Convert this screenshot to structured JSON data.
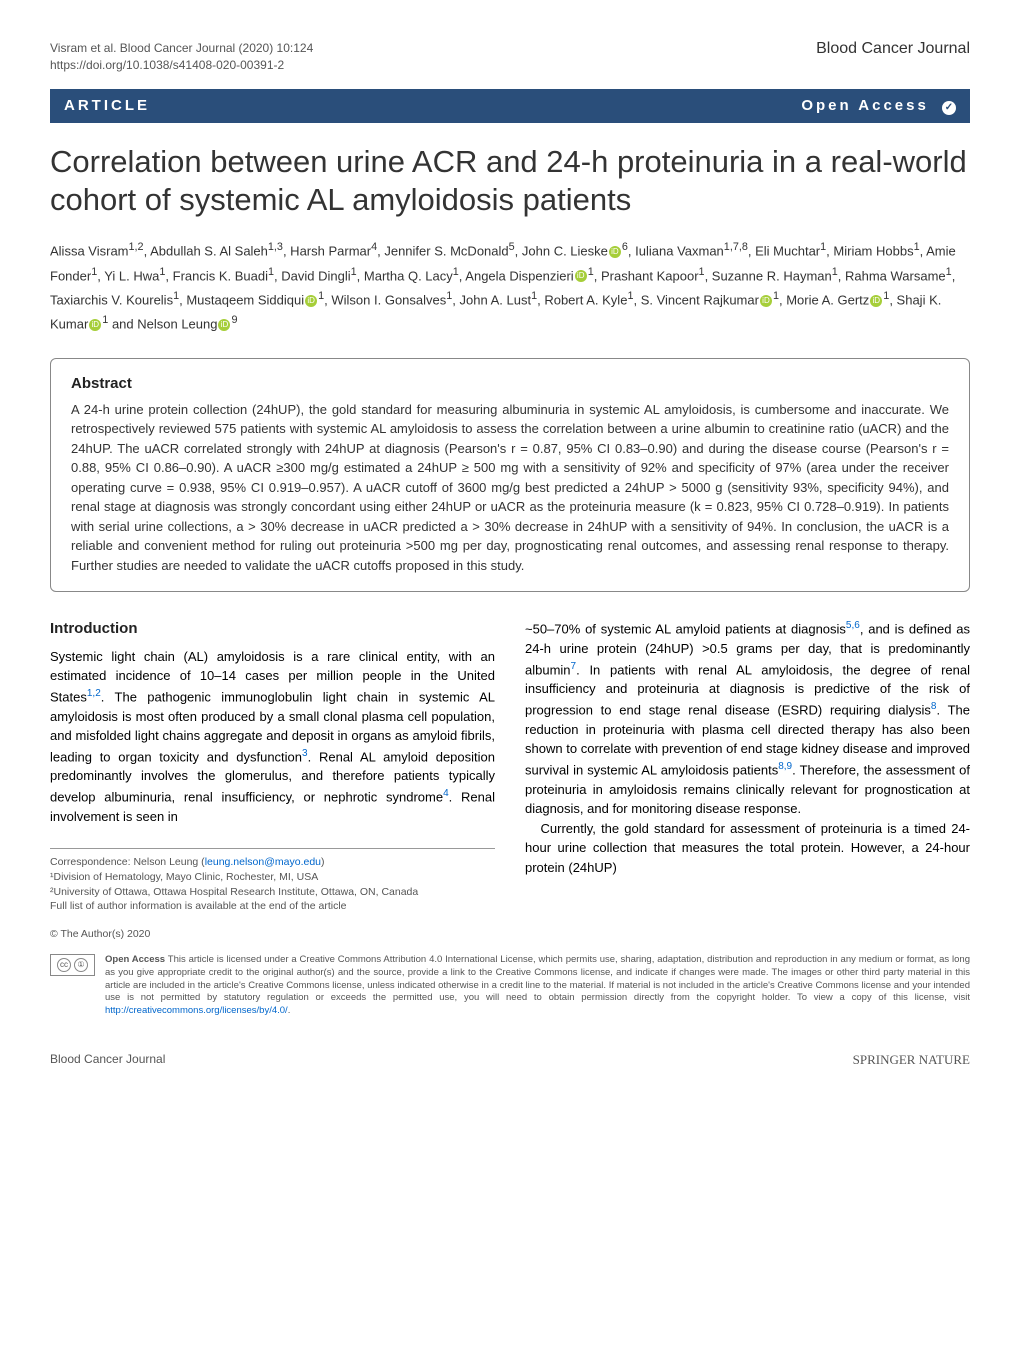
{
  "header": {
    "citation_line1": "Visram et al. Blood Cancer Journal         (2020) 10:124",
    "citation_line2": "https://doi.org/10.1038/s41408-020-00391-2",
    "journal": "Blood Cancer Journal"
  },
  "bar": {
    "left": "ARTICLE",
    "right": "Open Access"
  },
  "title": "Correlation between urine ACR and 24-h proteinuria in a real-world cohort of systemic AL amyloidosis patients",
  "authors_html": "Alissa Visram<sup>1,2</sup>, Abdullah S. Al Saleh<sup>1,3</sup>, Harsh Parmar<sup>4</sup>, Jennifer S. McDonald<sup>5</sup>, John C. Lieske<span class='orcid'>iD</span><sup>6</sup>, Iuliana Vaxman<sup>1,7,8</sup>, Eli Muchtar<sup>1</sup>, Miriam Hobbs<sup>1</sup>, Amie Fonder<sup>1</sup>, Yi L. Hwa<sup>1</sup>, Francis K. Buadi<sup>1</sup>, David Dingli<sup>1</sup>, Martha Q. Lacy<sup>1</sup>, Angela Dispenzieri<span class='orcid'>iD</span><sup>1</sup>, Prashant Kapoor<sup>1</sup>, Suzanne R. Hayman<sup>1</sup>, Rahma Warsame<sup>1</sup>, Taxiarchis V. Kourelis<sup>1</sup>, Mustaqeem Siddiqui<span class='orcid'>iD</span><sup>1</sup>, Wilson I. Gonsalves<sup>1</sup>, John A. Lust<sup>1</sup>, Robert A. Kyle<sup>1</sup>, S. Vincent Rajkumar<span class='orcid'>iD</span><sup>1</sup>, Morie A. Gertz<span class='orcid'>iD</span><sup>1</sup>, Shaji K. Kumar<span class='orcid'>iD</span><sup>1</sup> and Nelson Leung<span class='orcid'>iD</span><sup>9</sup>",
  "abstract": {
    "heading": "Abstract",
    "text": "A 24-h urine protein collection (24hUP), the gold standard for measuring albuminuria in systemic AL amyloidosis, is cumbersome and inaccurate. We retrospectively reviewed 575 patients with systemic AL amyloidosis to assess the correlation between a urine albumin to creatinine ratio (uACR) and the 24hUP. The uACR correlated strongly with 24hUP at diagnosis (Pearson's r = 0.87, 95% CI 0.83–0.90) and during the disease course (Pearson's r = 0.88, 95% CI 0.86–0.90). A uACR ≥300 mg/g estimated a 24hUP ≥ 500 mg with a sensitivity of 92% and specificity of 97% (area under the receiver operating curve = 0.938, 95% CI 0.919–0.957). A uACR cutoff of 3600 mg/g best predicted a 24hUP > 5000 g (sensitivity 93%, specificity 94%), and renal stage at diagnosis was strongly concordant using either 24hUP or uACR as the proteinuria measure (k = 0.823, 95% CI 0.728–0.919). In patients with serial urine collections, a > 30% decrease in uACR predicted a > 30% decrease in 24hUP with a sensitivity of 94%. In conclusion, the uACR is a reliable and convenient method for ruling out proteinuria >500 mg per day, prognosticating renal outcomes, and assessing renal response to therapy. Further studies are needed to validate the uACR cutoffs proposed in this study."
  },
  "intro": {
    "heading": "Introduction",
    "col1_html": "Systemic light chain (AL) amyloidosis is a rare clinical entity, with an estimated incidence of 10–14 cases per million people in the United States<span class='ref-sup'>1,2</span>. The pathogenic immunoglobulin light chain in systemic AL amyloidosis is most often produced by a small clonal plasma cell population, and misfolded light chains aggregate and deposit in organs as amyloid fibrils, leading to organ toxicity and dysfunction<span class='ref-sup'>3</span>. Renal AL amyloid deposition predominantly involves the glomerulus, and therefore patients typically develop albuminuria, renal insufficiency, or nephrotic syndrome<span class='ref-sup'>4</span>. Renal involvement is seen in",
    "col2_html": "~50–70% of systemic AL amyloid patients at diagnosis<span class='ref-sup'>5,6</span>, and is defined as 24-h urine protein (24hUP) >0.5 grams per day, that is predominantly albumin<span class='ref-sup'>7</span>. In patients with renal AL amyloidosis, the degree of renal insufficiency and proteinuria at diagnosis is predictive of the risk of progression to end stage renal disease (ESRD) requiring dialysis<span class='ref-sup'>8</span>. The reduction in proteinuria with plasma cell directed therapy has also been shown to correlate with prevention of end stage kidney disease and improved survival in systemic AL amyloidosis patients<span class='ref-sup'>8,9</span>. Therefore, the assessment of proteinuria in amyloidosis remains clinically relevant for prognostication at diagnosis, and for monitoring disease response.<br>&nbsp;&nbsp;&nbsp;Currently, the gold standard for assessment of proteinuria is a timed 24-hour urine collection that measures the total protein. However, a 24-hour protein (24hUP)"
  },
  "correspondence": {
    "line1": "Correspondence: Nelson Leung (",
    "email": "leung.nelson@mayo.edu",
    "line1_end": ")",
    "aff1": "¹Division of Hematology, Mayo Clinic, Rochester, MI, USA",
    "aff2": "²University of Ottawa, Ottawa Hospital Research Institute, Ottawa, ON, Canada",
    "full": "Full list of author information is available at the end of the article"
  },
  "copyright": "© The Author(s) 2020",
  "license": {
    "bold": "Open Access",
    "text": " This article is licensed under a Creative Commons Attribution 4.0 International License, which permits use, sharing, adaptation, distribution and reproduction in any medium or format, as long as you give appropriate credit to the original author(s) and the source, provide a link to the Creative Commons license, and indicate if changes were made. The images or other third party material in this article are included in the article's Creative Commons license, unless indicated otherwise in a credit line to the material. If material is not included in the article's Creative Commons license and your intended use is not permitted by statutory regulation or exceeds the permitted use, you will need to obtain permission directly from the copyright holder. To view a copy of this license, visit ",
    "link": "http://creativecommons.org/licenses/by/4.0/"
  },
  "footer": {
    "left": "Blood Cancer Journal",
    "right": "SPRINGER NATURE"
  }
}
